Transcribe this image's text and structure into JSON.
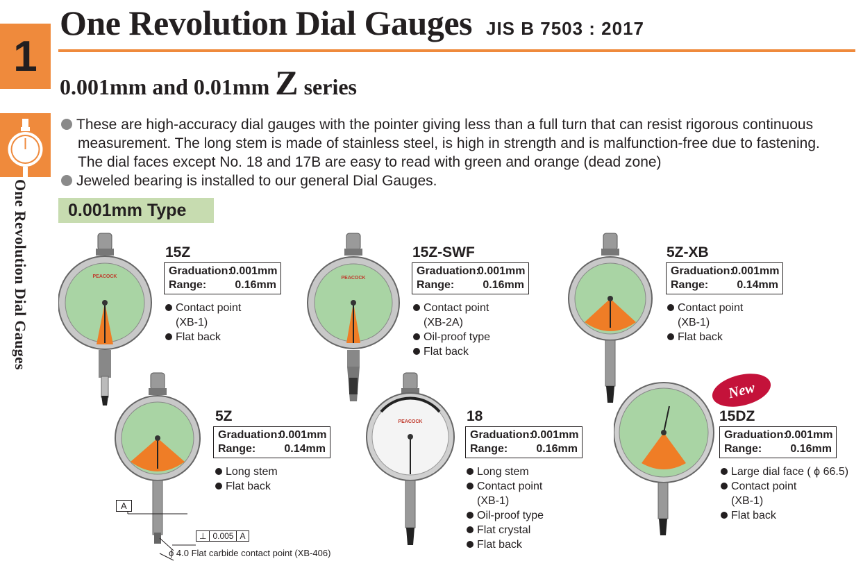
{
  "section_number": "1",
  "side_title": "One Revolution Dial Gauges",
  "title": "One Revolution Dial Gauges",
  "standard": "JIS B 7503 : 2017",
  "subtitle_pre": "0.001mm and 0.01mm",
  "subtitle_z": "Z",
  "subtitle_post": "series",
  "description": {
    "line1": "These are high-accuracy dial gauges with the pointer giving less than a full turn that can resist rigorous continuous",
    "line2": "measurement. The long stem is made of stainless steel, is high in strength and is malfunction-free due to fastening.",
    "line3": "The dial faces except No. 18 and 17B are easy to read with green and orange (dead zone)",
    "line4": "Jeweled bearing is installed to our general Dial Gauges."
  },
  "type_heading": "0.001mm Type",
  "spec_labels": {
    "graduation": "Graduation:",
    "range": "Range:"
  },
  "brand": "PEACOCK",
  "products": [
    {
      "model": "15Z",
      "graduation": "0.001mm",
      "range": "0.16mm",
      "features": [
        [
          "Contact point",
          "(XB-1)"
        ],
        [
          "Flat back"
        ]
      ]
    },
    {
      "model": "15Z-SWF",
      "graduation": "0.001mm",
      "range": "0.16mm",
      "features": [
        [
          "Contact point",
          "(XB-2A)"
        ],
        [
          "Oil-proof type"
        ],
        [
          "Flat back"
        ]
      ]
    },
    {
      "model": "5Z-XB",
      "graduation": "0.001mm",
      "range": "0.14mm",
      "features": [
        [
          "Contact point",
          "(XB-1)"
        ],
        [
          "Flat back"
        ]
      ]
    },
    {
      "model": "5Z",
      "graduation": "0.001mm",
      "range": "0.14mm",
      "features": [
        [
          "Long stem"
        ],
        [
          "Flat back"
        ]
      ]
    },
    {
      "model": "18",
      "graduation": "0.001mm",
      "range": "0.16mm",
      "features": [
        [
          "Long stem"
        ],
        [
          "Contact point",
          "(XB-1)"
        ],
        [
          "Oil-proof type"
        ],
        [
          "Flat crystal"
        ],
        [
          "Flat back"
        ]
      ]
    },
    {
      "model": "15DZ",
      "graduation": "0.001mm",
      "range": "0.16mm",
      "features": [
        [
          "Large dial face ( ϕ 66.5)"
        ],
        [
          "Contact point",
          "(XB-1)"
        ],
        [
          "Flat back"
        ]
      ]
    }
  ],
  "new_badge": "New",
  "tolerance": {
    "datum": "A",
    "symbol": "⊥",
    "value": "0.005",
    "ref": "A",
    "note": "ϕ 4.0 Flat carbide contact point (XB-406)"
  },
  "colors": {
    "accent": "#ef8a3c",
    "dial_green": "#a9d4a4",
    "dead_zone": "#ef7d26",
    "heading_bg": "#c7dcb0"
  }
}
